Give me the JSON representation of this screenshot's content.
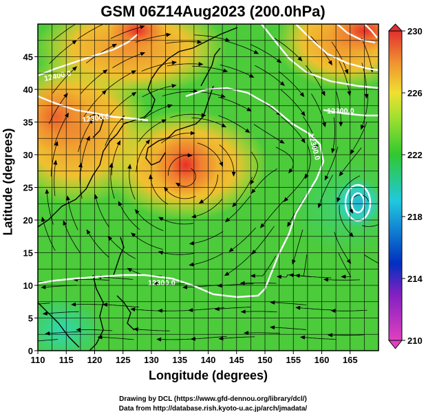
{
  "title": "GSM 06Z14Aug2023 (200.0hPa)",
  "xlabel": "Longitude (degrees)",
  "ylabel": "Latitude  (degrees)",
  "x_ticks": [
    "110",
    "115",
    "120",
    "125",
    "130",
    "135",
    "140",
    "145",
    "150",
    "155",
    "160",
    "165"
  ],
  "y_ticks": [
    "0",
    "5",
    "10",
    "15",
    "20",
    "25",
    "30",
    "35",
    "40",
    "45"
  ],
  "colorbar_ticks": [
    "210",
    "214",
    "218",
    "222",
    "226",
    "230"
  ],
  "contour_labels": [
    "12400.0",
    "12300.0",
    "12300.0",
    "12300.0",
    "12300.0"
  ],
  "credits": [
    "Drawing by DCL (https://www.gfd-dennou.org/library/dcl/)",
    "Data from http://database.rish.kyoto-u.ac.jp/arch/jmadata/"
  ],
  "chart_data": {
    "type": "heatmap",
    "title": "GSM 06Z14Aug2023 (200.0hPa)",
    "xlabel": "Longitude (degrees)",
    "ylabel": "Latitude  (degrees)",
    "xlim": [
      110,
      170
    ],
    "ylim": [
      0,
      50
    ],
    "colorbar_range": [
      210,
      230
    ],
    "colors": {
      "low": "#e040c0",
      "mid_low": "#0030c0",
      "cyan": "#20d0d0",
      "green": "#30c830",
      "yellow": "#f0e030",
      "orange": "#f09030",
      "high": "#e03030"
    },
    "features": [
      "temperature shading",
      "geopotential height contours (white)",
      "wind streamlines (black)",
      "coastlines",
      "grid"
    ]
  }
}
